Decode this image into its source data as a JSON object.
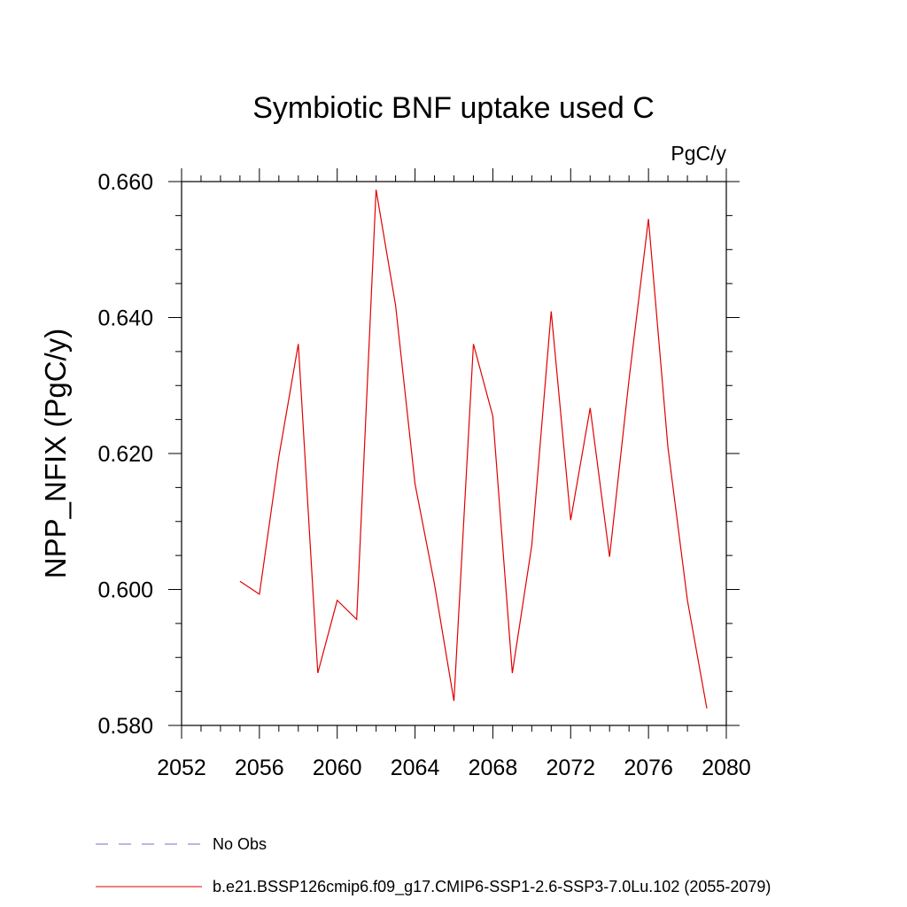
{
  "chart_data": {
    "type": "line",
    "title": "Symbiotic BNF uptake used C",
    "units_label": "PgC/y",
    "ylabel": "NPP_NFIX  (PgC/y)",
    "xlabel": "",
    "xlim": [
      2052,
      2080
    ],
    "ylim": [
      0.58,
      0.66
    ],
    "x_ticks": [
      2052,
      2056,
      2060,
      2064,
      2068,
      2072,
      2076,
      2080
    ],
    "x_tick_labels": [
      "2052",
      "2056",
      "2060",
      "2064",
      "2068",
      "2072",
      "2076",
      "2080"
    ],
    "y_ticks": [
      0.58,
      0.6,
      0.62,
      0.64,
      0.66
    ],
    "y_tick_labels": [
      "0.580",
      "0.600",
      "0.620",
      "0.640",
      "0.660"
    ],
    "grid": false,
    "legend_position": "bottom",
    "series": [
      {
        "name": "b.e21.BSSP126cmip6.f09_g17.CMIP6-SSP1-2.6-SSP3-7.0Lu.102 (2055-2079)",
        "color": "#e00000",
        "style": "solid",
        "x": [
          2055,
          2056,
          2057,
          2058,
          2059,
          2060,
          2061,
          2062,
          2063,
          2064,
          2065,
          2066,
          2067,
          2068,
          2069,
          2070,
          2071,
          2072,
          2073,
          2074,
          2075,
          2076,
          2077,
          2078,
          2079
        ],
        "values": [
          0.6012,
          0.5993,
          0.6195,
          0.6361,
          0.5877,
          0.5984,
          0.5956,
          0.6588,
          0.6418,
          0.6155,
          0.6008,
          0.5836,
          0.6361,
          0.6255,
          0.5877,
          0.6065,
          0.6409,
          0.6102,
          0.6267,
          0.6048,
          0.6309,
          0.6545,
          0.6209,
          0.5984,
          0.5825
        ]
      }
    ],
    "legend": [
      {
        "label": "No Obs",
        "color": "#7b68c8",
        "style": "dashed"
      },
      {
        "label": "b.e21.BSSP126cmip6.f09_g17.CMIP6-SSP1-2.6-SSP3-7.0Lu.102 (2055-2079)",
        "color": "#e00000",
        "style": "solid"
      }
    ]
  }
}
